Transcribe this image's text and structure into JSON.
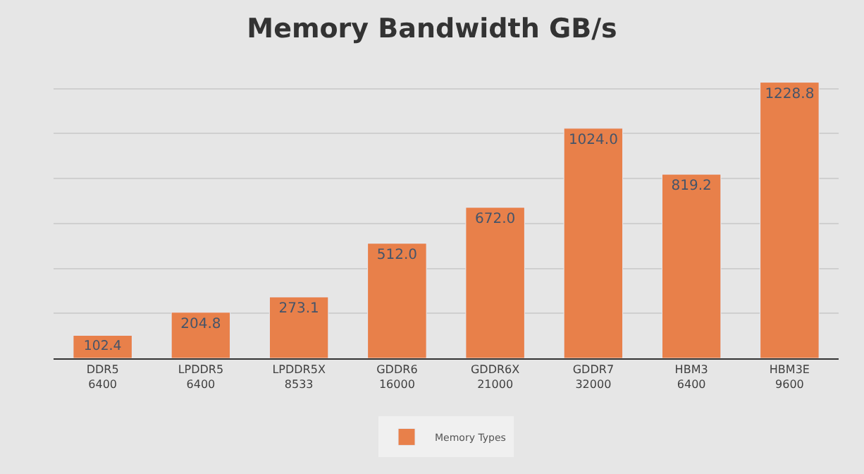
{
  "chart_data": {
    "type": "bar",
    "title": "Memory Bandwidth GB/s",
    "categories": [
      "DDR5\n6400",
      "LPDDR5\n6400",
      "LPDDR5X\n8533",
      "GDDR6\n16000",
      "GDDR6X\n21000",
      "GDDR7\n32000",
      "HBM3\n6400",
      "HBM3E\n9600"
    ],
    "series": [
      {
        "name": "Memory Types",
        "color": "#e8804a",
        "values": [
          102.4,
          204.8,
          273.1,
          512.0,
          672.0,
          1024.0,
          819.2,
          1228.8
        ],
        "value_labels": [
          "102.4",
          "204.8",
          "273.1",
          "512.0",
          "672.0",
          "1024.0",
          "819.2",
          "1228.8"
        ]
      }
    ],
    "yticks": [
      {
        "value": 0,
        "label": null
      },
      {
        "value": 200,
        "label": null
      },
      {
        "value": 400,
        "label": null
      },
      {
        "value": 600,
        "label": null
      },
      {
        "value": 800,
        "label": null
      },
      {
        "value": 1000,
        "label": null
      },
      {
        "value": 1200,
        "label": null
      }
    ],
    "grid": "y",
    "legend": "bottom",
    "tick_labels": "x"
  }
}
